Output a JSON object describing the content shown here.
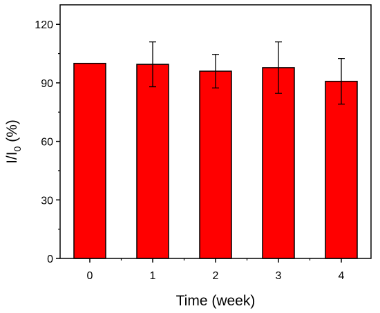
{
  "chart_data": {
    "type": "bar",
    "categories": [
      "0",
      "1",
      "2",
      "3",
      "4"
    ],
    "values": [
      100,
      99.5,
      96,
      97.8,
      90.8
    ],
    "error_bars": [
      0,
      11.5,
      8.6,
      13.2,
      11.7
    ],
    "xlabel": "Time (week)",
    "ylabel": {
      "base": "I/I",
      "subscript": "0",
      "suffix": " (%)"
    },
    "ylim": [
      0,
      130
    ],
    "yticks": [
      "0",
      "30",
      "60",
      "90",
      "120"
    ],
    "ytick_values": [
      0,
      30,
      60,
      90,
      120
    ],
    "grid": false,
    "legend": "none",
    "colors": {
      "bar_fill": "#ff0000",
      "bar_stroke": "#000000",
      "axis": "#000000",
      "error_bar": "#000000"
    }
  }
}
